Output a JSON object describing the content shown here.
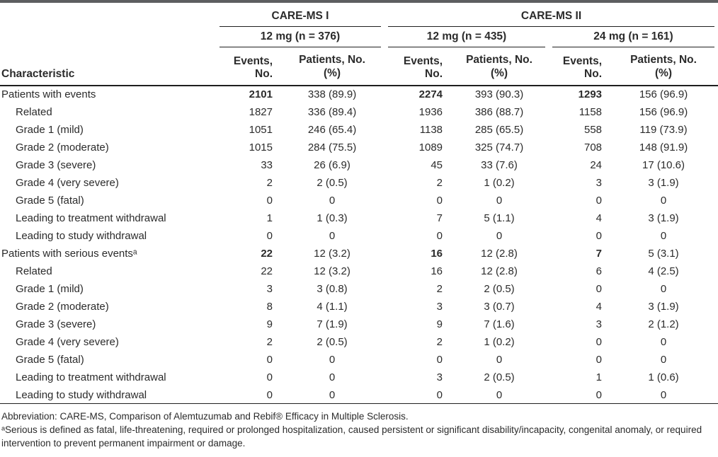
{
  "colors": {
    "top_bar": "#5d5e60",
    "text": "#2b2b2b",
    "rule": "#1f1f1f"
  },
  "table": {
    "characteristic_label": "Characteristic",
    "group_names": [
      "CARE-MS I",
      "CARE-MS II"
    ],
    "dose_headers": [
      "12 mg (n = 376)",
      "12 mg (n = 435)",
      "24 mg (n = 161)"
    ],
    "events_header": "Events, No.",
    "patients_header_line1": "Patients, No.",
    "patients_header_line2": "(%)",
    "rows": [
      {
        "label": "Patients with events",
        "indent": false,
        "bold": true,
        "values": [
          "2101",
          "338 (89.9)",
          "2274",
          "393 (90.3)",
          "1293",
          "156 (96.9)"
        ]
      },
      {
        "label": "Related",
        "indent": true,
        "bold": false,
        "values": [
          "1827",
          "336 (89.4)",
          "1936",
          "386 (88.7)",
          "1158",
          "156 (96.9)"
        ]
      },
      {
        "label": "Grade 1 (mild)",
        "indent": true,
        "bold": false,
        "values": [
          "1051",
          "246 (65.4)",
          "1138",
          "285 (65.5)",
          "558",
          "119 (73.9)"
        ]
      },
      {
        "label": "Grade 2 (moderate)",
        "indent": true,
        "bold": false,
        "values": [
          "1015",
          "284 (75.5)",
          "1089",
          "325 (74.7)",
          "708",
          "148 (91.9)"
        ]
      },
      {
        "label": "Grade 3 (severe)",
        "indent": true,
        "bold": false,
        "values": [
          "33",
          "26 (6.9)",
          "45",
          "33 (7.6)",
          "24",
          "17 (10.6)"
        ]
      },
      {
        "label": "Grade 4 (very severe)",
        "indent": true,
        "bold": false,
        "values": [
          "2",
          "2 (0.5)",
          "2",
          "1 (0.2)",
          "3",
          "3 (1.9)"
        ]
      },
      {
        "label": "Grade 5 (fatal)",
        "indent": true,
        "bold": false,
        "values": [
          "0",
          "0",
          "0",
          "0",
          "0",
          "0"
        ]
      },
      {
        "label": "Leading to treatment withdrawal",
        "indent": true,
        "bold": false,
        "values": [
          "1",
          "1 (0.3)",
          "7",
          "5 (1.1)",
          "4",
          "3 (1.9)"
        ]
      },
      {
        "label": "Leading to study withdrawal",
        "indent": true,
        "bold": false,
        "values": [
          "0",
          "0",
          "0",
          "0",
          "0",
          "0"
        ]
      },
      {
        "label": "Patients with serious eventsᵃ",
        "indent": false,
        "bold": true,
        "values": [
          "22",
          "12 (3.2)",
          "16",
          "12 (2.8)",
          "7",
          "5 (3.1)"
        ]
      },
      {
        "label": "Related",
        "indent": true,
        "bold": false,
        "values": [
          "22",
          "12 (3.2)",
          "16",
          "12 (2.8)",
          "6",
          "4 (2.5)"
        ]
      },
      {
        "label": "Grade 1 (mild)",
        "indent": true,
        "bold": false,
        "values": [
          "3",
          "3 (0.8)",
          "2",
          "2 (0.5)",
          "0",
          "0"
        ]
      },
      {
        "label": "Grade 2 (moderate)",
        "indent": true,
        "bold": false,
        "values": [
          "8",
          "4 (1.1)",
          "3",
          "3 (0.7)",
          "4",
          "3 (1.9)"
        ]
      },
      {
        "label": "Grade 3 (severe)",
        "indent": true,
        "bold": false,
        "values": [
          "9",
          "7 (1.9)",
          "9",
          "7 (1.6)",
          "3",
          "2 (1.2)"
        ]
      },
      {
        "label": "Grade 4 (very severe)",
        "indent": true,
        "bold": false,
        "values": [
          "2",
          "2 (0.5)",
          "2",
          "1 (0.2)",
          "0",
          "0"
        ]
      },
      {
        "label": "Grade 5 (fatal)",
        "indent": true,
        "bold": false,
        "values": [
          "0",
          "0",
          "0",
          "0",
          "0",
          "0"
        ]
      },
      {
        "label": "Leading to treatment withdrawal",
        "indent": true,
        "bold": false,
        "values": [
          "0",
          "0",
          "3",
          "2 (0.5)",
          "1",
          "1 (0.6)"
        ]
      },
      {
        "label": "Leading to study withdrawal",
        "indent": true,
        "bold": false,
        "values": [
          "0",
          "0",
          "0",
          "0",
          "0",
          "0"
        ]
      }
    ]
  },
  "footnotes": {
    "abbreviation": "Abbreviation: CARE-MS, Comparison of Alemtuzumab and Rebif® Efficacy in Multiple Sclerosis.",
    "serious_definition": "ᵃSerious is defined as fatal, life-threatening, required or prolonged hospitalization, caused persistent or significant disability/incapacity, congenital anomaly, or required intervention to prevent permanent impairment or damage."
  }
}
